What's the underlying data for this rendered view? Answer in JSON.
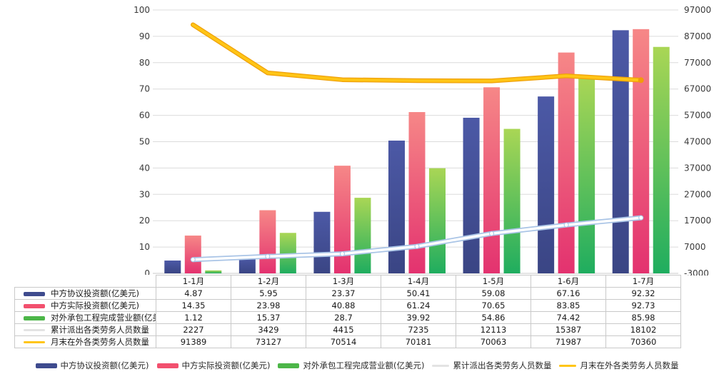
{
  "chart_data": {
    "type": "bar",
    "subtype": "grouped bars with two overlay lines (dual axis combo)",
    "title": "",
    "categories": [
      "1-1月",
      "1-2月",
      "1-3月",
      "1-4月",
      "1-5月",
      "1-6月",
      "1-7月"
    ],
    "series": [
      {
        "name": "中方协议投资额(亿美元)",
        "type": "bar",
        "axis": "left",
        "color": "#3E4B8E",
        "gradient_top": "#4C59A6",
        "gradient_bottom": "#3A4584",
        "values": [
          4.87,
          5.95,
          23.37,
          50.41,
          59.08,
          67.16,
          92.32
        ]
      },
      {
        "name": "中方实际投资额(亿美元)",
        "type": "bar",
        "axis": "left",
        "color": "#F2506E",
        "gradient_top": "#F68787",
        "gradient_bottom": "#E3326F",
        "values": [
          14.35,
          23.98,
          40.88,
          61.24,
          70.65,
          83.85,
          92.73
        ]
      },
      {
        "name": "对外承包工程完成营业额(亿美元)",
        "type": "bar",
        "axis": "left",
        "color": "#4CB648",
        "gradient_top": "#A9D655",
        "gradient_bottom": "#1FAD5F",
        "values": [
          1.12,
          15.37,
          28.7,
          39.92,
          54.86,
          74.42,
          85.98
        ]
      },
      {
        "name": "累计派出各类劳务人员数量",
        "type": "line",
        "axis": "right",
        "color": "#FFFFFF",
        "edge_color": "#A9C4E6",
        "swatch_color": "#E3E3E3",
        "values": [
          2227,
          3429,
          4415,
          7235,
          12113,
          15387,
          18102
        ]
      },
      {
        "name": "月末在外各类劳务人员数量",
        "type": "line",
        "axis": "right",
        "color": "#FFC516",
        "edge_color": "#EFA009",
        "swatch_color": "#FFC516",
        "values": [
          91389,
          73127,
          70514,
          70181,
          70063,
          71987,
          70360
        ]
      }
    ],
    "left_axis": {
      "min": 0,
      "max": 100,
      "step": 10,
      "labels": [
        "0",
        "10",
        "20",
        "30",
        "40",
        "50",
        "60",
        "70",
        "80",
        "90",
        "100"
      ]
    },
    "right_axis": {
      "min": -3000,
      "max": 97000,
      "step": 10000,
      "labels": [
        "-3000",
        "7000",
        "17000",
        "27000",
        "37000",
        "47000",
        "57000",
        "67000",
        "77000",
        "87000",
        "97000"
      ]
    },
    "grid": "horizontal gridlines only",
    "legend_position": "bottom",
    "data_table_shown": true
  }
}
